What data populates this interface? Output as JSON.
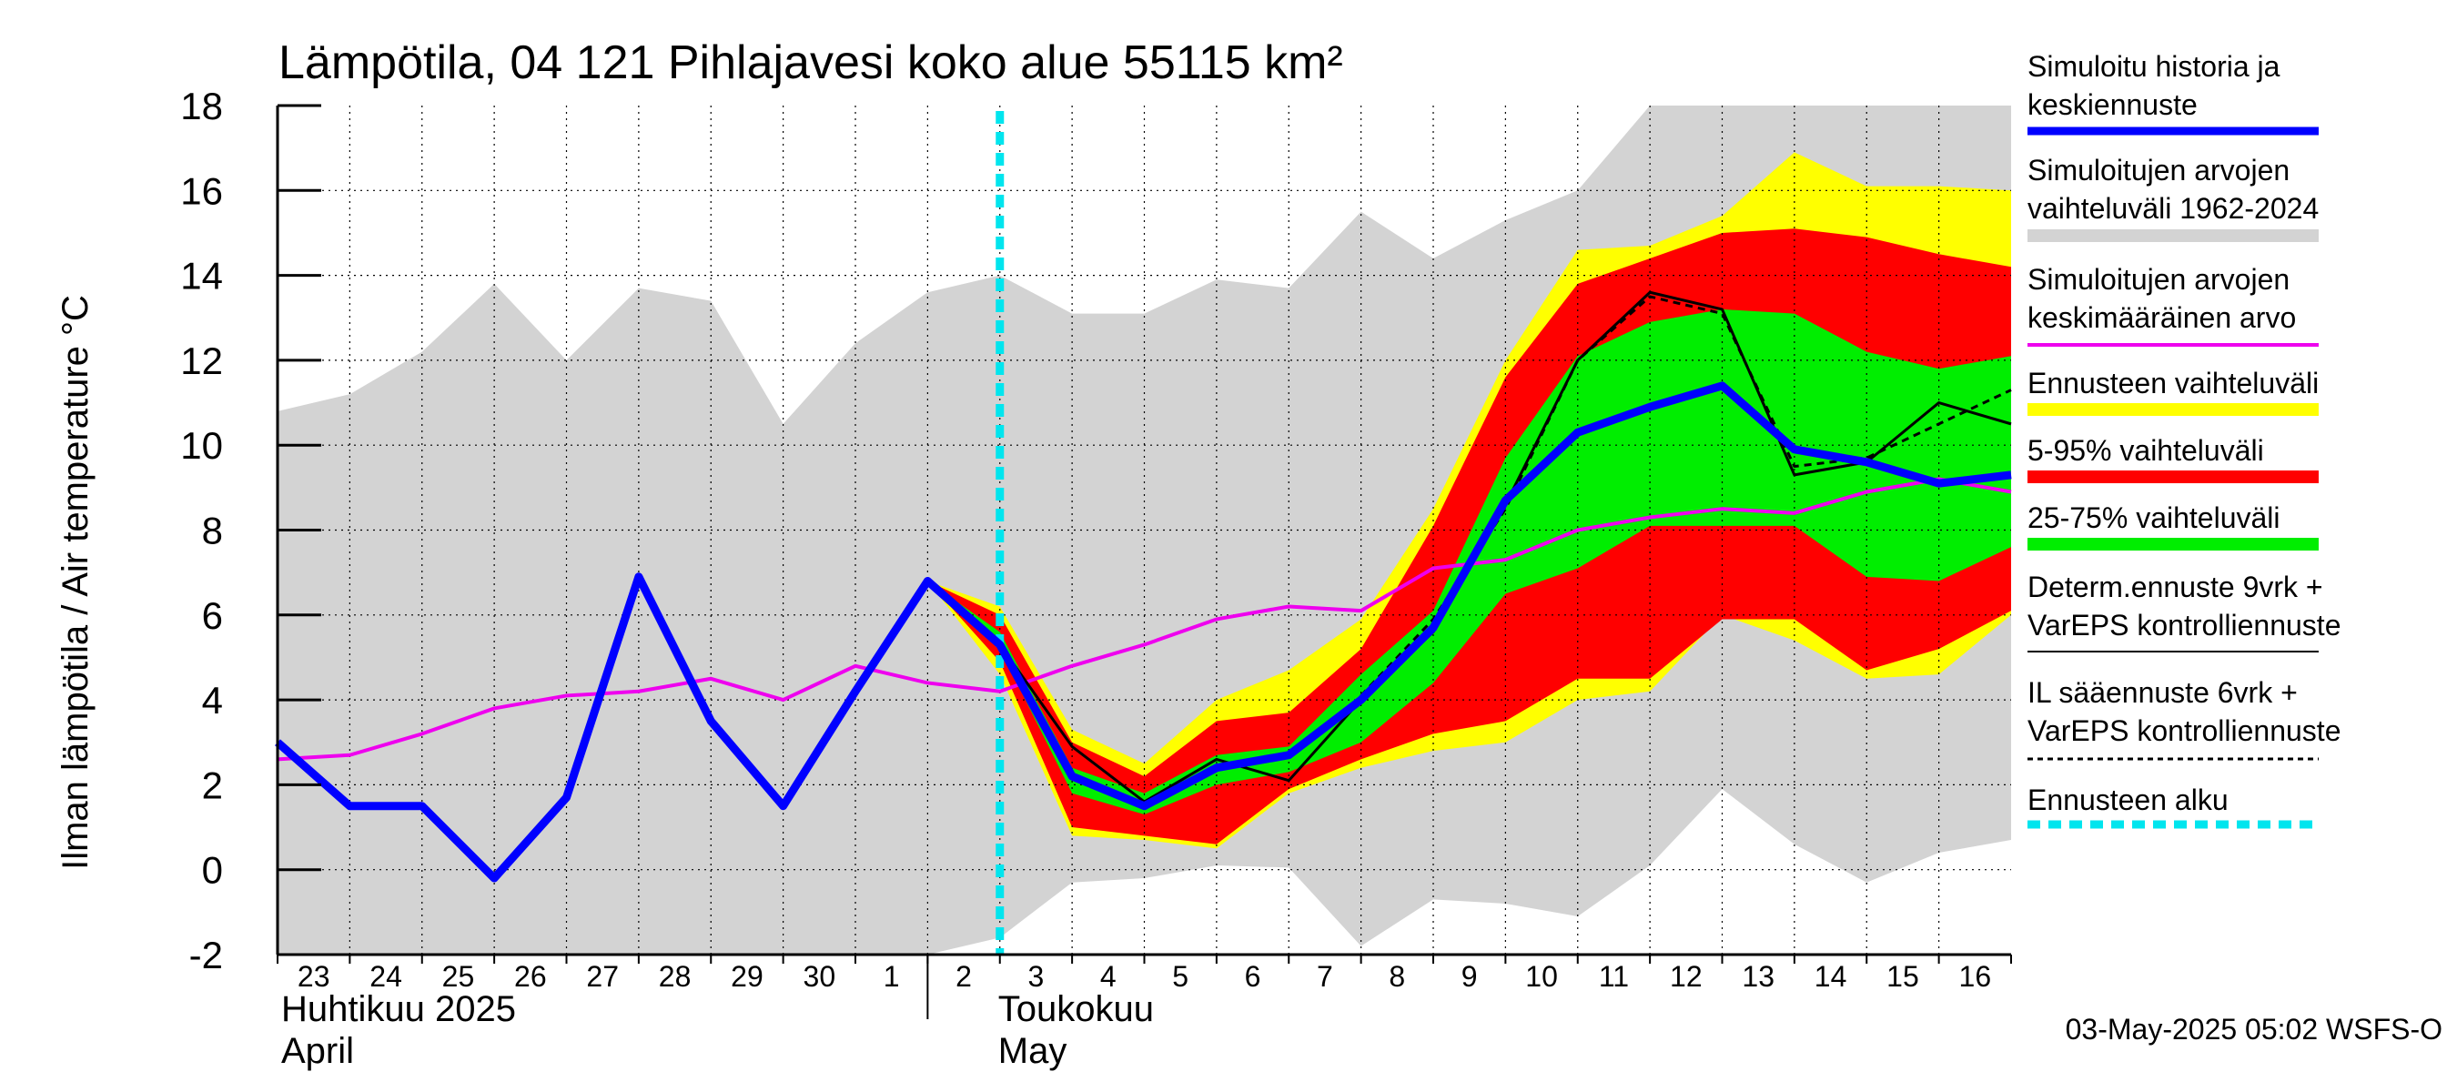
{
  "chart_data": {
    "type": "area",
    "title": "Lämpötila, 04 121 Pihlajavesi koko alue 55115 km²",
    "ylabel": "Ilman lämpötila / Air temperature   °C",
    "ylim": [
      -2,
      18
    ],
    "yticks": [
      -2,
      0,
      2,
      4,
      6,
      8,
      10,
      12,
      14,
      16,
      18
    ],
    "x_labels": [
      "23",
      "24",
      "25",
      "26",
      "27",
      "28",
      "29",
      "30",
      "1",
      "2",
      "3",
      "4",
      "5",
      "6",
      "7",
      "8",
      "9",
      "10",
      "11",
      "12",
      "13",
      "14",
      "15",
      "16"
    ],
    "months": [
      {
        "line1": "Huhtikuu  2025",
        "line2": "April",
        "start_day": 0
      },
      {
        "line1": "Toukokuu",
        "line2": "May",
        "start_day": 9
      }
    ],
    "forecast_start_day": 10,
    "x_max_day": 24,
    "footer": "03-May-2025 05:02 WSFS-O",
    "colors": {
      "history_range": "#d3d3d3",
      "forecast_range": "#ffff00",
      "p5_95": "#ff0000",
      "p25_75": "#00ee00",
      "simulated": "#0000ff",
      "mean": "#ee00ee",
      "determ": "#000000",
      "il": "#000000",
      "forecast_start": "#00e5ee"
    },
    "series": [
      {
        "name": "Simuloitujen arvojen vaihteluväli 1962-2024",
        "kind": "band",
        "x": [
          -0.2,
          1,
          2,
          3,
          4,
          5,
          6,
          7,
          8,
          9,
          10,
          11,
          12,
          13,
          14,
          15,
          16,
          17,
          18,
          19,
          20,
          21,
          22,
          23,
          24
        ],
        "low": [
          -2,
          -2,
          -2,
          -2,
          -2,
          -2,
          -2,
          -2,
          -2,
          -2,
          -1.6,
          -0.3,
          -0.2,
          0.1,
          0.05,
          -1.8,
          -0.7,
          -0.8,
          -1.1,
          0.1,
          1.9,
          0.6,
          -0.3,
          0.4,
          0.7
        ],
        "high": [
          10.8,
          11.2,
          12.2,
          13.8,
          12.0,
          13.7,
          13.4,
          10.5,
          12.4,
          13.6,
          14.0,
          13.1,
          13.1,
          13.9,
          13.7,
          15.5,
          14.4,
          15.3,
          16.0,
          18,
          18,
          18,
          18,
          18,
          18
        ]
      },
      {
        "name": "Ennusteen vaihteluväli",
        "kind": "band",
        "x": [
          9,
          10,
          11,
          12,
          13,
          14,
          15,
          16,
          17,
          18,
          19,
          20,
          21,
          22,
          23,
          24
        ],
        "low": [
          6.8,
          4.6,
          0.8,
          0.7,
          0.5,
          1.8,
          2.4,
          2.8,
          3.0,
          4.0,
          4.2,
          6.0,
          5.4,
          4.5,
          4.6,
          6.0
        ],
        "high": [
          6.8,
          6.2,
          3.3,
          2.5,
          4.0,
          4.7,
          5.9,
          8.5,
          12.0,
          14.6,
          14.7,
          15.4,
          16.9,
          16.1,
          16.1,
          16.0
        ]
      },
      {
        "name": "5-95% vaihteluväli",
        "kind": "band",
        "x": [
          9,
          10,
          11,
          12,
          13,
          14,
          15,
          16,
          17,
          18,
          19,
          20,
          21,
          22,
          23,
          24
        ],
        "low": [
          6.8,
          4.9,
          1.0,
          0.8,
          0.6,
          1.9,
          2.6,
          3.2,
          3.5,
          4.5,
          4.5,
          5.9,
          5.9,
          4.7,
          5.2,
          6.1
        ],
        "high": [
          6.8,
          6.0,
          3.0,
          2.2,
          3.5,
          3.7,
          5.2,
          8.1,
          11.6,
          13.8,
          14.4,
          15.0,
          15.1,
          14.9,
          14.5,
          14.2
        ]
      },
      {
        "name": "25-75% vaihteluväli",
        "kind": "band",
        "x": [
          9,
          10,
          11,
          12,
          13,
          14,
          15,
          16,
          17,
          18,
          19,
          20,
          21,
          22,
          23,
          24
        ],
        "low": [
          6.8,
          5.2,
          1.8,
          1.3,
          2.0,
          2.3,
          3.0,
          4.4,
          6.5,
          7.1,
          8.1,
          8.1,
          8.1,
          6.9,
          6.8,
          7.6
        ],
        "high": [
          6.8,
          5.6,
          2.4,
          1.8,
          2.7,
          2.9,
          4.6,
          6.1,
          9.7,
          12.1,
          12.9,
          13.2,
          13.1,
          12.2,
          11.8,
          12.1
        ]
      },
      {
        "name": "Simuloitujen arvojen keskimääräinen arvo",
        "kind": "line",
        "x": [
          0,
          1,
          2,
          3,
          4,
          5,
          6,
          7,
          8,
          9,
          10,
          11,
          12,
          13,
          14,
          15,
          16,
          17,
          18,
          19,
          20,
          21,
          22,
          23,
          24
        ],
        "values": [
          2.6,
          2.7,
          3.2,
          3.8,
          4.1,
          4.2,
          4.5,
          4.0,
          4.8,
          4.4,
          4.2,
          4.8,
          5.3,
          5.9,
          6.2,
          6.1,
          7.1,
          7.3,
          8.0,
          8.3,
          8.5,
          8.4,
          8.9,
          9.2,
          8.9
        ]
      },
      {
        "name": "Determ.ennuste 9vrk + VarEPS kontrolliennuste",
        "kind": "line",
        "x": [
          9,
          10,
          11,
          12,
          13,
          14,
          15,
          16,
          17,
          18,
          19,
          20,
          21,
          22,
          23,
          24
        ],
        "values": [
          6.8,
          5.3,
          2.9,
          1.6,
          2.6,
          2.1,
          4.0,
          5.6,
          8.6,
          12.0,
          13.6,
          13.2,
          9.3,
          9.6,
          11.0,
          10.5
        ]
      },
      {
        "name": "IL sääennuste 6vrk + VarEPS kontrolliennuste",
        "kind": "dashed",
        "x": [
          15,
          16,
          17,
          18,
          19,
          20,
          21,
          22,
          23,
          24
        ],
        "values": [
          4.1,
          5.9,
          8.5,
          12.0,
          13.5,
          13.1,
          9.5,
          9.7,
          10.5,
          11.3
        ]
      },
      {
        "name": "Simuloitu historia ja keskiennuste",
        "kind": "line",
        "x": [
          0,
          1,
          2,
          3,
          4,
          5,
          6,
          7,
          8,
          9,
          10,
          11,
          12,
          13,
          14,
          15,
          16,
          17,
          18,
          19,
          20,
          21,
          22,
          23,
          24
        ],
        "values": [
          3.0,
          1.5,
          1.5,
          -0.2,
          1.7,
          6.9,
          3.5,
          1.5,
          4.2,
          6.8,
          5.3,
          2.2,
          1.5,
          2.4,
          2.7,
          4.0,
          5.7,
          8.7,
          10.3,
          10.9,
          11.4,
          9.9,
          9.6,
          9.1,
          9.3
        ]
      }
    ],
    "legend": [
      {
        "label1": "Simuloitu historia ja",
        "label2": "keskiennuste",
        "style": "blue-thick"
      },
      {
        "label1": "Simuloitujen arvojen",
        "label2": "vaihteluväli 1962-2024",
        "style": "grey-thick"
      },
      {
        "label1": "Simuloitujen arvojen",
        "label2": "keskimääräinen arvo",
        "style": "magenta"
      },
      {
        "label1": "Ennusteen vaihteluväli",
        "label2": "",
        "style": "yellow-thick"
      },
      {
        "label1": "5-95% vaihteluväli",
        "label2": "",
        "style": "red-thick"
      },
      {
        "label1": "25-75% vaihteluväli",
        "label2": "",
        "style": "green-thick"
      },
      {
        "label1": "Determ.ennuste 9vrk +",
        "label2": "VarEPS kontrolliennuste",
        "style": "black"
      },
      {
        "label1": "IL sääennuste 6vrk  +",
        "label2": "  VarEPS kontrolliennuste",
        "style": "black-dashed"
      },
      {
        "label1": "Ennusteen alku",
        "label2": "",
        "style": "cyan-dashed"
      }
    ]
  }
}
